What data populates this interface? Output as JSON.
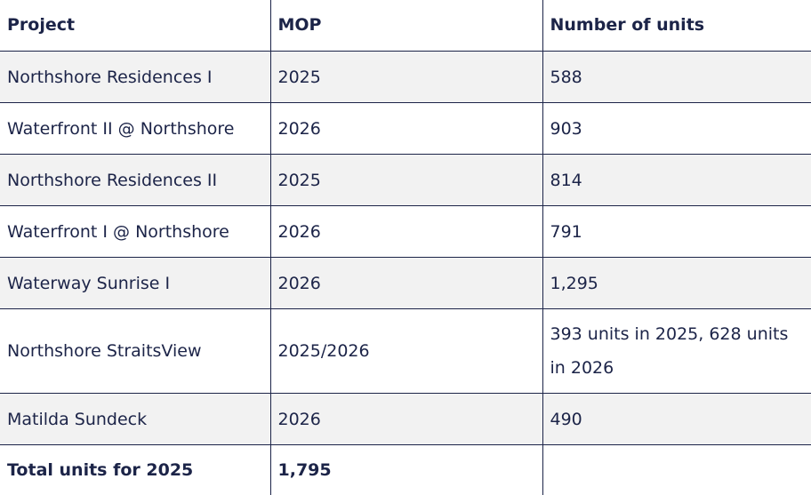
{
  "table": {
    "headers": [
      "Project",
      "MOP",
      "Number of units"
    ],
    "rows": [
      {
        "project": "Northshore Residences I",
        "mop": "2025",
        "units": "588"
      },
      {
        "project": "Waterfront II @ Northshore",
        "mop": "2026",
        "units": "903"
      },
      {
        "project": "Northshore Residences II",
        "mop": "2025",
        "units": "814"
      },
      {
        "project": "Waterfront I @ Northshore",
        "mop": "2026",
        "units": "791"
      },
      {
        "project": "Waterway Sunrise I",
        "mop": "2026",
        "units": "1,295"
      },
      {
        "project": "Northshore StraitsView",
        "mop": "2025/2026",
        "units": "393 units in 2025, 628 units in 2026"
      },
      {
        "project": "Matilda Sundeck",
        "mop": "2026",
        "units": "490"
      }
    ],
    "footer": {
      "label": "Total units for 2025",
      "value": "1,795"
    }
  },
  "colors": {
    "text": "#1c2448",
    "row_shade": "#f2f2f2",
    "border": "#1c2448"
  }
}
